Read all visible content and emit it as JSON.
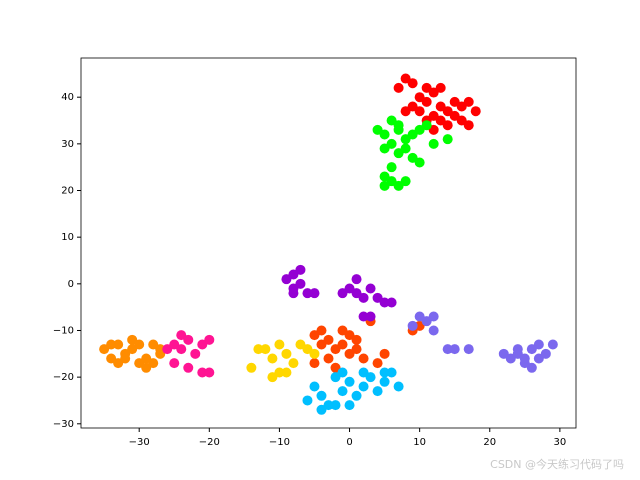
{
  "chart_data": {
    "type": "scatter",
    "xlim": [
      -38.3,
      32.3
    ],
    "ylim": [
      -30.9,
      48.4
    ],
    "xticks": [
      {
        "value": -30,
        "label": "−30"
      },
      {
        "value": -20,
        "label": "−20"
      },
      {
        "value": -10,
        "label": "−10"
      },
      0,
      10,
      20,
      30
    ],
    "yticks": [
      {
        "value": -30,
        "label": "−30"
      },
      {
        "value": -20,
        "label": "−20"
      },
      {
        "value": -10,
        "label": "−10"
      },
      0,
      10,
      20,
      30,
      40
    ],
    "series": [
      {
        "color": "#ff0000",
        "x": [
          8,
          7,
          9,
          10,
          11,
          12,
          13,
          12,
          11,
          14,
          15,
          16,
          17,
          18,
          12,
          10,
          9,
          13,
          14,
          11,
          16,
          13,
          15,
          8,
          17
        ],
        "y": [
          44,
          42,
          43,
          40,
          39,
          41,
          38,
          36,
          35,
          37,
          39,
          35,
          34,
          37,
          33,
          37,
          38,
          42,
          34,
          42,
          38,
          35,
          36,
          37,
          39
        ]
      },
      {
        "color": "#00ff00",
        "x": [
          4,
          5,
          6,
          7,
          8,
          9,
          10,
          6,
          5,
          8,
          9,
          10,
          7,
          12,
          14,
          5,
          6,
          7,
          8,
          6,
          5,
          11,
          7
        ],
        "y": [
          33,
          32,
          35,
          33,
          31,
          32,
          33,
          30,
          29,
          29,
          27,
          26,
          28,
          30,
          31,
          23,
          22,
          21,
          22,
          25,
          21,
          34,
          34
        ]
      },
      {
        "color": "#ff4500",
        "x": [
          -4,
          -3,
          -2,
          -1,
          0,
          1,
          2,
          -3,
          -5,
          -2,
          0,
          -1,
          1,
          3,
          4,
          5,
          -4,
          9,
          10,
          -5
        ],
        "y": [
          -10,
          -12,
          -14,
          -13,
          -15,
          -14,
          -16,
          -16,
          -17,
          -18,
          -11,
          -10,
          -12,
          -8,
          -17,
          -15,
          -13,
          -10,
          -9,
          -11
        ]
      },
      {
        "color": "#ff8c00",
        "x": [
          -35,
          -34,
          -33,
          -32,
          -31,
          -30,
          -29,
          -28,
          -27,
          -31,
          -33,
          -29,
          -30,
          -32,
          -28,
          -34,
          -27
        ],
        "y": [
          -14,
          -16,
          -13,
          -15,
          -14,
          -17,
          -16,
          -13,
          -15,
          -12,
          -17,
          -18,
          -13,
          -16,
          -17,
          -13,
          -14
        ]
      },
      {
        "color": "#ff1493",
        "x": [
          -26,
          -25,
          -24,
          -23,
          -22,
          -21,
          -20,
          -23,
          -21,
          -25,
          -20,
          -24
        ],
        "y": [
          -14,
          -13,
          -11,
          -12,
          -15,
          -13,
          -12,
          -18,
          -19,
          -17,
          -19,
          -14
        ]
      },
      {
        "color": "#ffd700",
        "x": [
          -14,
          -12,
          -11,
          -10,
          -9,
          -8,
          -7,
          -11,
          -9,
          -6,
          -5,
          -13,
          -10
        ],
        "y": [
          -18,
          -14,
          -16,
          -19,
          -15,
          -17,
          -13,
          -20,
          -19,
          -14,
          -15,
          -14,
          -13
        ]
      },
      {
        "color": "#00bfff",
        "x": [
          -6,
          -5,
          -4,
          -3,
          -2,
          -1,
          0,
          1,
          2,
          3,
          4,
          5,
          6,
          7,
          -2,
          -1,
          0,
          5,
          2,
          -4
        ],
        "y": [
          -25,
          -22,
          -24,
          -26,
          -20,
          -23,
          -21,
          -24,
          -22,
          -20,
          -23,
          -21,
          -19,
          -22,
          -26,
          -19,
          -26,
          -19,
          -19,
          -27
        ]
      },
      {
        "color": "#9400d3",
        "x": [
          -9,
          -8,
          -7,
          -8,
          -7,
          -6,
          -8,
          -1,
          0,
          1,
          2,
          1,
          3,
          4,
          5,
          6,
          2,
          3,
          -5
        ],
        "y": [
          1,
          2,
          3,
          -1,
          0,
          -2,
          -2,
          -2,
          -1,
          -2,
          -3,
          1,
          -1,
          -3,
          -4,
          -4,
          -7,
          -7,
          -2
        ]
      },
      {
        "color": "#7b68ee",
        "x": [
          9,
          10,
          11,
          12,
          12,
          14,
          15,
          17,
          22,
          23,
          24,
          25,
          26,
          27,
          28,
          29,
          26,
          24,
          27,
          25
        ],
        "y": [
          -9,
          -7,
          -8,
          -7,
          -10,
          -14,
          -14,
          -14,
          -15,
          -16,
          -15,
          -17,
          -14,
          -16,
          -15,
          -13,
          -18,
          -14,
          -13,
          -16
        ]
      }
    ]
  },
  "watermark": "CSDN @今天练习代码了吗"
}
